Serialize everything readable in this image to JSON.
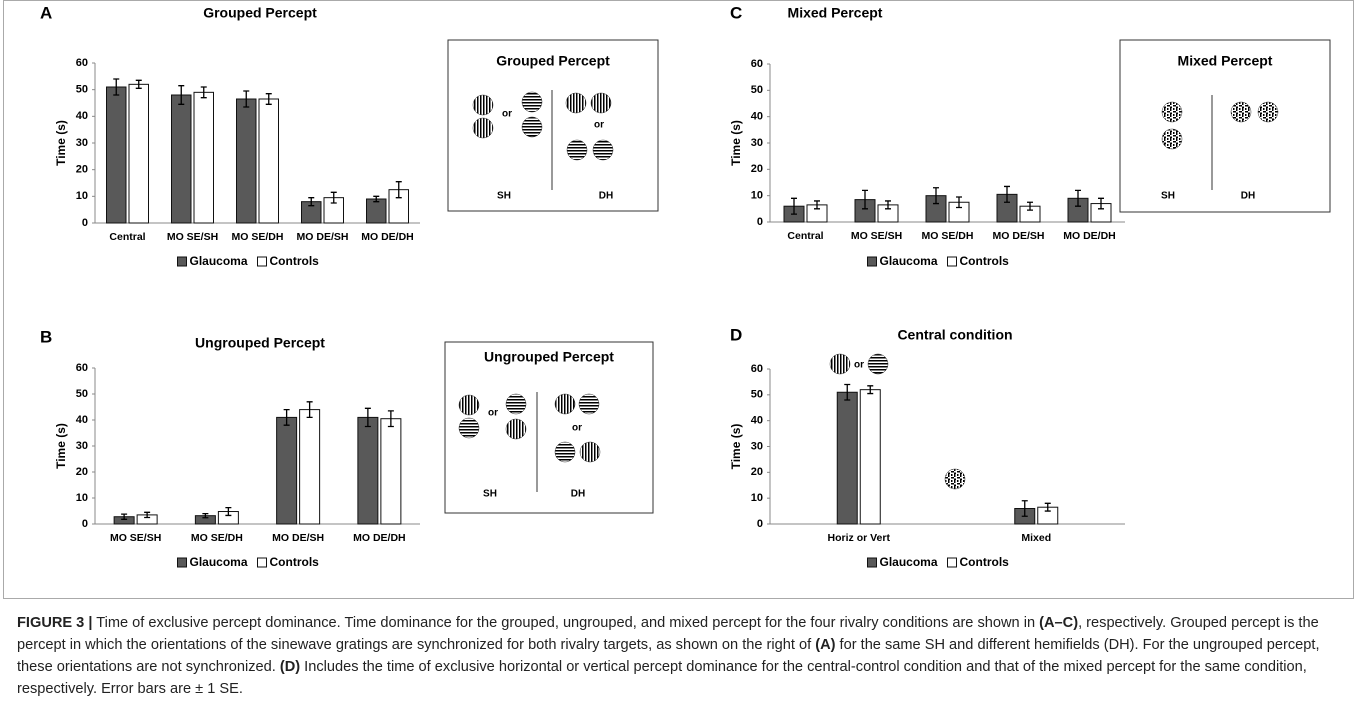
{
  "chart_data": [
    {
      "type": "bar",
      "panel": "A",
      "title": "Grouped Percept",
      "ylabel": "Time (s)",
      "categories": [
        "Central",
        "MO SE/SH",
        "MO SE/DH",
        "MO DE/SH",
        "MO DE/DH"
      ],
      "series": [
        {
          "name": "Glaucoma",
          "color": "#595959",
          "values": [
            51,
            48,
            46.5,
            8,
            9
          ],
          "errors": [
            3,
            3.5,
            3,
            1.5,
            1
          ]
        },
        {
          "name": "Controls",
          "color": "#ffffff",
          "values": [
            52,
            49,
            46.5,
            9.5,
            12.5
          ],
          "errors": [
            1.5,
            2,
            2,
            2,
            3
          ]
        }
      ],
      "ylim": [
        0,
        60
      ],
      "yticks": [
        0,
        10,
        20,
        30,
        40,
        50,
        60
      ],
      "legend": "bottom",
      "inset": {
        "title": "Grouped  Percept",
        "labels": [
          "or",
          "or",
          "SH",
          "DH"
        ]
      }
    },
    {
      "type": "bar",
      "panel": "B",
      "title": "Ungrouped Percept",
      "ylabel": "Time (s)",
      "categories": [
        "MO SE/SH",
        "MO SE/DH",
        "MO DE/SH",
        "MO DE/DH"
      ],
      "series": [
        {
          "name": "Glaucoma",
          "color": "#595959",
          "values": [
            2.8,
            3.2,
            41,
            41
          ],
          "errors": [
            1,
            0.8,
            3,
            3.5
          ]
        },
        {
          "name": "Controls",
          "color": "#ffffff",
          "values": [
            3.5,
            4.8,
            44,
            40.5
          ],
          "errors": [
            1,
            1.5,
            3,
            3
          ]
        }
      ],
      "ylim": [
        0,
        60
      ],
      "yticks": [
        0,
        10,
        20,
        30,
        40,
        50,
        60
      ],
      "legend": "bottom",
      "inset": {
        "title": "Ungrouped  Percept",
        "labels": [
          "or",
          "or",
          "SH",
          "DH"
        ]
      }
    },
    {
      "type": "bar",
      "panel": "C",
      "title": "Mixed Percept",
      "ylabel": "Time (s)",
      "categories": [
        "Central",
        "MO SE/SH",
        "MO SE/DH",
        "MO DE/SH",
        "MO DE/DH"
      ],
      "series": [
        {
          "name": "Glaucoma",
          "color": "#595959",
          "values": [
            6,
            8.5,
            10,
            10.5,
            9
          ],
          "errors": [
            3,
            3.5,
            3,
            3,
            3
          ]
        },
        {
          "name": "Controls",
          "color": "#ffffff",
          "values": [
            6.5,
            6.5,
            7.5,
            6,
            7
          ],
          "errors": [
            1.5,
            1.5,
            2,
            1.5,
            2
          ]
        }
      ],
      "ylim": [
        0,
        60
      ],
      "yticks": [
        0,
        10,
        20,
        30,
        40,
        50,
        60
      ],
      "legend": "bottom",
      "inset": {
        "title": "Mixed  Percept",
        "labels": [
          "SH",
          "DH"
        ]
      }
    },
    {
      "type": "bar",
      "panel": "D",
      "title": "Central condition",
      "ylabel": "Time (s)",
      "categories": [
        "Horiz or Vert",
        "Mixed"
      ],
      "series": [
        {
          "name": "Glaucoma",
          "color": "#595959",
          "values": [
            51,
            6
          ],
          "errors": [
            3,
            3
          ]
        },
        {
          "name": "Controls",
          "color": "#ffffff",
          "values": [
            52,
            6.5
          ],
          "errors": [
            1.5,
            1.5
          ]
        }
      ],
      "ylim": [
        0,
        60
      ],
      "yticks": [
        0,
        10,
        20,
        30,
        40,
        50,
        60
      ],
      "legend": "bottom",
      "icon_labels": [
        "or"
      ]
    }
  ],
  "caption": {
    "label": "FIGURE 3 |",
    "parts": [
      " Time of exclusive percept dominance. Time dominance for the grouped, ungrouped, and mixed percept for the four rivalry conditions are shown in ",
      "(A–C)",
      ", respectively. Grouped percept is the percept in which the orientations of the sinewave gratings are synchronized for both rivalry targets, as shown on the right of ",
      "(A)",
      " for the same SH and different hemifields (DH). For the ungrouped percept, these orientations are not synchronized. ",
      "(D)",
      " Includes the time of exclusive horizontal or vertical percept dominance for the central-control condition and that of the mixed percept for the same condition, respectively. Error bars are ± 1 SE."
    ]
  }
}
